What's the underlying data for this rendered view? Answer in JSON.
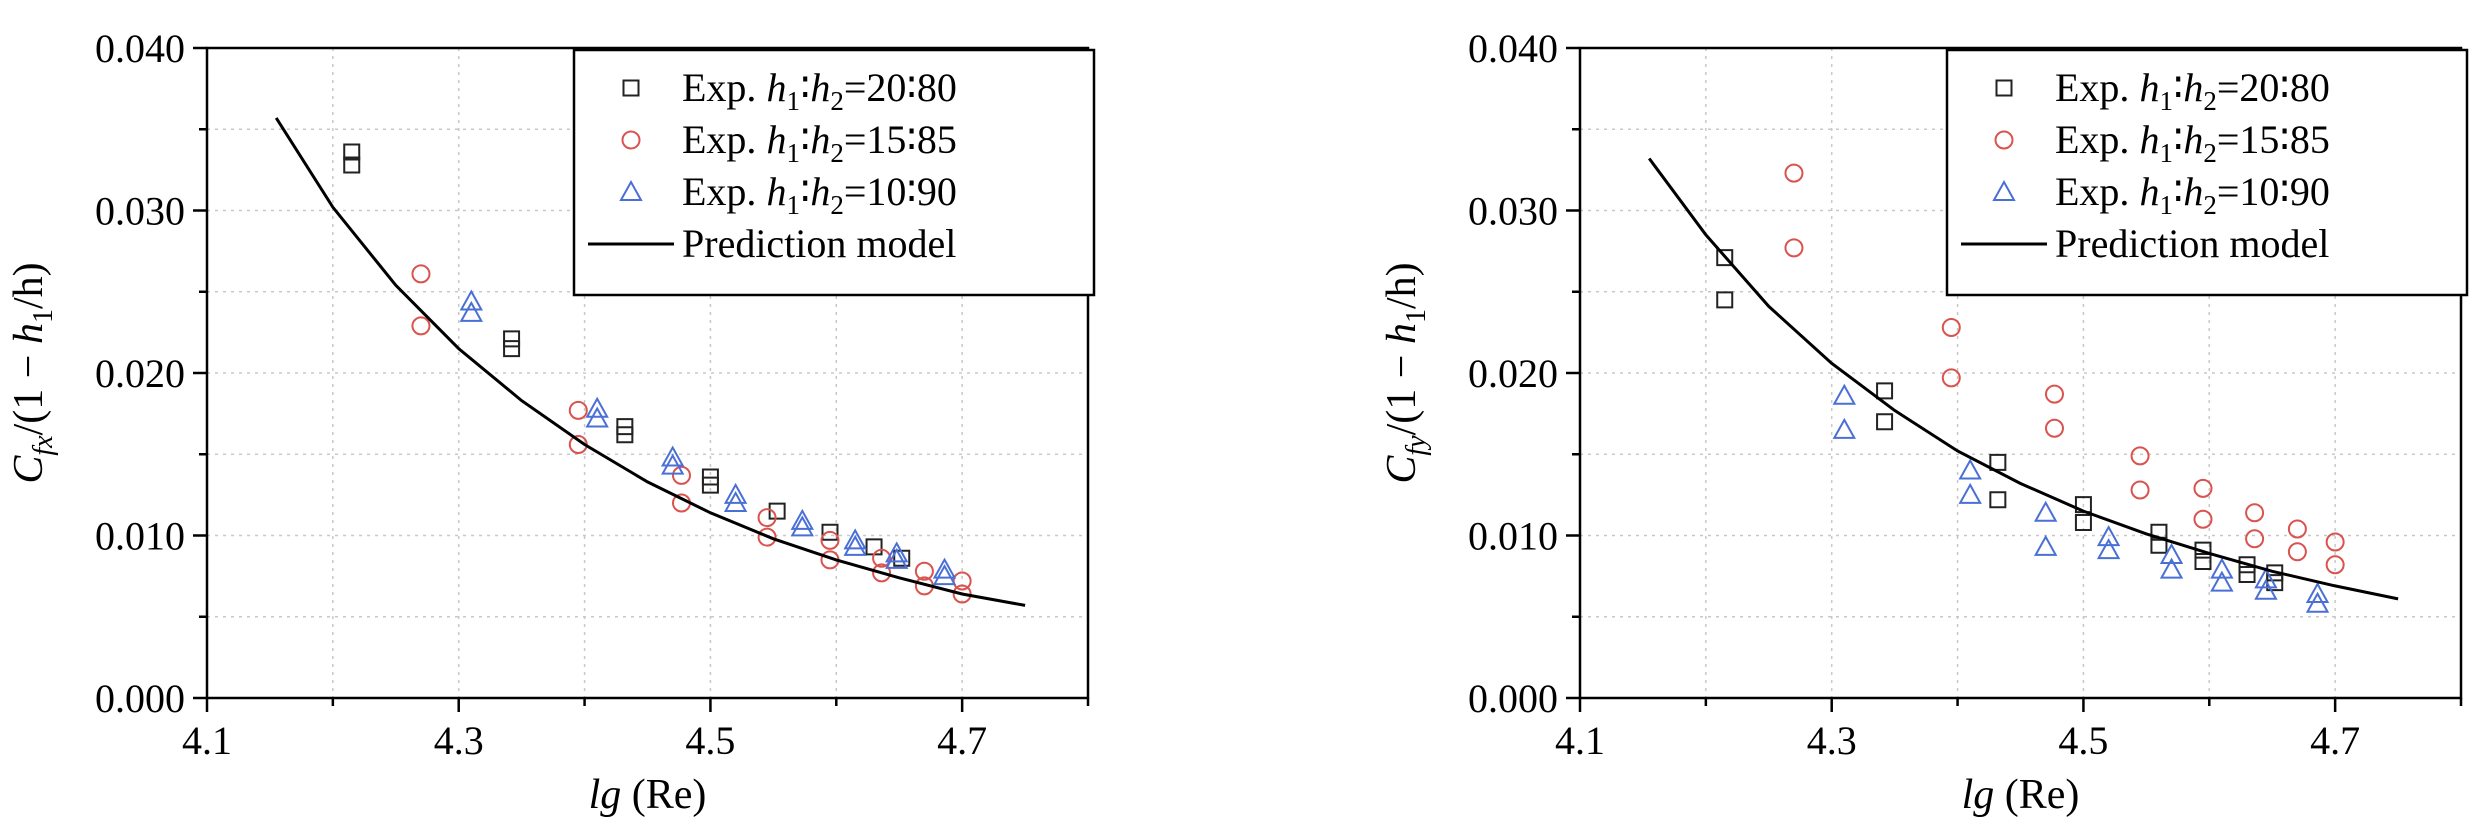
{
  "colors": {
    "exp_20_80": "#222222",
    "exp_15_85": "#d9534f",
    "exp_10_90": "#4a6fd6",
    "model": "#000000",
    "grid": "#c8c8c8"
  },
  "chart_data": [
    {
      "type": "scatter",
      "title": "",
      "xlabel": {
        "italic": "lg",
        "normal": " (Re)"
      },
      "ylabel": {
        "c": "C",
        "sub": "fx",
        "mid": "/(1 − ",
        "h": "h",
        "sub1": "1",
        "tail": "/h)"
      },
      "xlim": [
        4.1,
        4.8
      ],
      "ylim": [
        0.0,
        0.04
      ],
      "xticks": [
        4.1,
        4.3,
        4.5,
        4.7
      ],
      "xtick_labels": [
        "4.1",
        "4.3",
        "4.5",
        "4.7"
      ],
      "yticks": [
        0.0,
        0.01,
        0.02,
        0.03,
        0.04
      ],
      "ytick_labels": [
        "0.000",
        "0.010",
        "0.020",
        "0.030",
        "0.040"
      ],
      "grid": true,
      "legend_position": "top-right",
      "series": [
        {
          "name": {
            "pre": "Exp. ",
            "h": "h",
            "s1": "1",
            "colon": "∶",
            "s2": "2",
            "ratio": "=20∶80"
          },
          "marker": "square",
          "color": "#222222",
          "x": [
            4.215,
            4.215,
            4.342,
            4.342,
            4.432,
            4.432,
            4.5,
            4.5,
            4.553,
            4.595,
            4.63,
            4.652
          ],
          "y": [
            0.0336,
            0.0328,
            0.0221,
            0.0215,
            0.0167,
            0.0162,
            0.0136,
            0.0131,
            0.0115,
            0.0102,
            0.0093,
            0.0086
          ]
        },
        {
          "name": {
            "pre": "Exp. ",
            "h": "h",
            "s1": "1",
            "colon": "∶",
            "s2": "2",
            "ratio": "=15∶85"
          },
          "marker": "circle",
          "color": "#d9534f",
          "x": [
            4.27,
            4.27,
            4.395,
            4.395,
            4.477,
            4.477,
            4.545,
            4.545,
            4.595,
            4.595,
            4.636,
            4.636,
            4.67,
            4.67,
            4.7,
            4.7
          ],
          "y": [
            0.0261,
            0.0229,
            0.0177,
            0.0156,
            0.0137,
            0.012,
            0.0111,
            0.0099,
            0.0097,
            0.0085,
            0.0086,
            0.0077,
            0.0078,
            0.0069,
            0.0072,
            0.0064
          ]
        },
        {
          "name": {
            "pre": "Exp. ",
            "h": "h",
            "s1": "1",
            "colon": "∶",
            "s2": "2",
            "ratio": "=10∶90"
          },
          "marker": "triangle",
          "color": "#4a6fd6",
          "x": [
            4.31,
            4.31,
            4.41,
            4.41,
            4.47,
            4.47,
            4.52,
            4.52,
            4.573,
            4.573,
            4.615,
            4.615,
            4.648,
            4.648,
            4.686,
            4.686
          ],
          "y": [
            0.0244,
            0.0237,
            0.0178,
            0.0172,
            0.0148,
            0.0143,
            0.0125,
            0.012,
            0.0109,
            0.0105,
            0.0097,
            0.0093,
            0.0089,
            0.0085,
            0.0079,
            0.0075
          ]
        },
        {
          "name": "Prediction model",
          "type": "line",
          "color": "#000000",
          "x": [
            4.155,
            4.2,
            4.25,
            4.3,
            4.35,
            4.4,
            4.45,
            4.5,
            4.55,
            4.6,
            4.65,
            4.7,
            4.75
          ],
          "y": [
            0.0357,
            0.0302,
            0.0254,
            0.0215,
            0.0183,
            0.0156,
            0.0133,
            0.0114,
            0.0098,
            0.0085,
            0.0074,
            0.0064,
            0.0057
          ]
        }
      ]
    },
    {
      "type": "scatter",
      "title": "",
      "xlabel": {
        "italic": "lg",
        "normal": " (Re)"
      },
      "ylabel": {
        "c": "C",
        "sub": "fy",
        "mid": "/(1 − ",
        "h": "h",
        "sub1": "1",
        "tail": "/h)"
      },
      "xlim": [
        4.1,
        4.8
      ],
      "ylim": [
        0.0,
        0.04
      ],
      "xticks": [
        4.1,
        4.3,
        4.5,
        4.7
      ],
      "xtick_labels": [
        "4.1",
        "4.3",
        "4.5",
        "4.7"
      ],
      "yticks": [
        0.0,
        0.01,
        0.02,
        0.03,
        0.04
      ],
      "ytick_labels": [
        "0.000",
        "0.010",
        "0.020",
        "0.030",
        "0.040"
      ],
      "grid": true,
      "legend_position": "top-right",
      "series": [
        {
          "name": {
            "pre": "Exp. ",
            "h": "h",
            "s1": "1",
            "colon": "∶",
            "s2": "2",
            "ratio": "=20∶80"
          },
          "marker": "square",
          "color": "#222222",
          "x": [
            4.215,
            4.215,
            4.342,
            4.342,
            4.432,
            4.432,
            4.5,
            4.5,
            4.56,
            4.56,
            4.595,
            4.595,
            4.63,
            4.63,
            4.652,
            4.652
          ],
          "y": [
            0.0271,
            0.0245,
            0.0189,
            0.017,
            0.0145,
            0.0122,
            0.0119,
            0.0108,
            0.0102,
            0.0094,
            0.0091,
            0.0084,
            0.0082,
            0.0076,
            0.0077,
            0.0071
          ]
        },
        {
          "name": {
            "pre": "Exp. ",
            "h": "h",
            "s1": "1",
            "colon": "∶",
            "s2": "2",
            "ratio": "=15∶85"
          },
          "marker": "circle",
          "color": "#d9534f",
          "x": [
            4.27,
            4.27,
            4.395,
            4.395,
            4.477,
            4.477,
            4.545,
            4.545,
            4.595,
            4.595,
            4.636,
            4.636,
            4.67,
            4.67,
            4.7,
            4.7
          ],
          "y": [
            0.0323,
            0.0277,
            0.0228,
            0.0197,
            0.0187,
            0.0166,
            0.0149,
            0.0128,
            0.0129,
            0.011,
            0.0114,
            0.0098,
            0.0104,
            0.009,
            0.0096,
            0.0082
          ]
        },
        {
          "name": {
            "pre": "Exp. ",
            "h": "h",
            "s1": "1",
            "colon": "∶",
            "s2": "2",
            "ratio": "=10∶90"
          },
          "marker": "triangle",
          "color": "#4a6fd6",
          "x": [
            4.31,
            4.31,
            4.41,
            4.41,
            4.47,
            4.47,
            4.52,
            4.52,
            4.57,
            4.57,
            4.61,
            4.61,
            4.645,
            4.645,
            4.686,
            4.686
          ],
          "y": [
            0.0186,
            0.0165,
            0.014,
            0.0125,
            0.0114,
            0.0093,
            0.0099,
            0.0091,
            0.0088,
            0.0079,
            0.0079,
            0.0071,
            0.0073,
            0.0066,
            0.0064,
            0.0058
          ]
        },
        {
          "name": "Prediction model",
          "type": "line",
          "color": "#000000",
          "x": [
            4.155,
            4.2,
            4.25,
            4.3,
            4.35,
            4.4,
            4.45,
            4.5,
            4.55,
            4.6,
            4.65,
            4.7,
            4.75
          ],
          "y": [
            0.0332,
            0.0285,
            0.0241,
            0.0206,
            0.0177,
            0.0152,
            0.0132,
            0.0115,
            0.0101,
            0.0089,
            0.0078,
            0.0069,
            0.0061
          ]
        }
      ]
    }
  ]
}
